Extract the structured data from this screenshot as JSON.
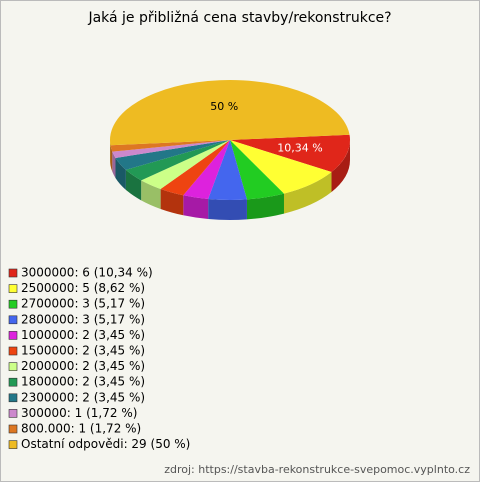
{
  "chart_data": {
    "type": "pie",
    "title": "Jaká je přibližná cena stavby/rekonstrukce?",
    "categories": [
      "3000000: 6 (10,34 %)",
      "2500000: 5 (8,62 %)",
      "2700000: 3 (5,17 %)",
      "2800000: 3 (5,17 %)",
      "1000000: 2 (3,45 %)",
      "1500000: 2 (3,45 %)",
      "2000000: 2 (3,45 %)",
      "1800000: 2 (3,45 %)",
      "2300000: 2 (3,45 %)",
      "300000: 1 (1,72 %)",
      "800.000: 1 (1,72 %)",
      "Ostatní odpovědi: 29 (50 %)"
    ],
    "values": [
      10.34,
      8.62,
      5.17,
      5.17,
      3.45,
      3.45,
      3.45,
      3.45,
      3.45,
      1.72,
      1.72,
      50
    ],
    "value_labels": [
      "10,34 %",
      null,
      null,
      null,
      null,
      null,
      null,
      null,
      null,
      null,
      null,
      "50 %"
    ],
    "colors": [
      "#e0261a",
      "#ffff33",
      "#22cc22",
      "#4466ee",
      "#dd22dd",
      "#ee4411",
      "#ccff88",
      "#229955",
      "#227788",
      "#cc88cc",
      "#dd7722",
      "#eebb22"
    ],
    "source": "zdroj: https://stavba-rekonstrukce-svepomoc.vyplnto.cz"
  }
}
